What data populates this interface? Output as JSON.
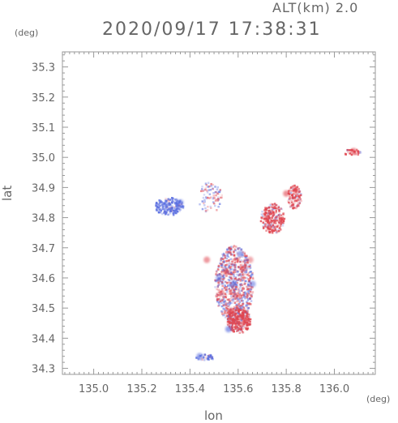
{
  "header": {
    "alt_label": "ALT(km) 2.0",
    "timestamp": "2020/09/17 17:38:31"
  },
  "colors": {
    "axis": "#999999",
    "positive": "#e0454f",
    "negative": "#5a6ee0",
    "background": "#ffffff"
  },
  "chart_data": {
    "type": "heatmap",
    "title": "2020/09/17 17:38:31",
    "subtitle": "ALT(km) 2.0",
    "xlabel": "lon",
    "ylabel": "lat",
    "x_unit": "(deg)",
    "y_unit": "(deg)",
    "xlim": [
      134.87,
      136.17
    ],
    "ylim": [
      34.28,
      35.35
    ],
    "x_ticks": [
      "135.0",
      "135.2",
      "135.4",
      "135.6",
      "135.8",
      "136.0"
    ],
    "y_ticks": [
      "34.3",
      "34.4",
      "34.5",
      "34.6",
      "34.7",
      "34.8",
      "34.9",
      "35.0",
      "35.1",
      "35.2",
      "35.3"
    ],
    "grid": false,
    "cells": [
      {
        "lon": 135.55,
        "lat": 34.62,
        "v": 0.6
      },
      {
        "lon": 135.58,
        "lat": 34.58,
        "v": -0.7
      },
      {
        "lon": 135.62,
        "lat": 34.63,
        "v": 0.5
      },
      {
        "lon": 135.53,
        "lat": 34.55,
        "v": 0.4
      },
      {
        "lon": 135.57,
        "lat": 34.49,
        "v": 0.9
      },
      {
        "lon": 135.63,
        "lat": 34.46,
        "v": 0.8
      },
      {
        "lon": 135.56,
        "lat": 34.43,
        "v": -0.6
      },
      {
        "lon": 135.61,
        "lat": 34.68,
        "v": -0.5
      },
      {
        "lon": 135.47,
        "lat": 34.66,
        "v": 0.4
      },
      {
        "lon": 135.66,
        "lat": 34.58,
        "v": -0.4
      },
      {
        "lon": 135.72,
        "lat": 34.8,
        "v": 0.7
      },
      {
        "lon": 135.8,
        "lat": 34.88,
        "v": 0.5
      },
      {
        "lon": 135.84,
        "lat": 34.89,
        "v": 0.6
      },
      {
        "lon": 135.3,
        "lat": 34.84,
        "v": -0.5
      },
      {
        "lon": 135.36,
        "lat": 34.85,
        "v": -0.4
      },
      {
        "lon": 136.08,
        "lat": 35.02,
        "v": 0.6
      },
      {
        "lon": 135.44,
        "lat": 34.34,
        "v": -0.5
      },
      {
        "lon": 135.52,
        "lat": 34.6,
        "v": -0.3
      },
      {
        "lon": 135.59,
        "lat": 34.54,
        "v": 0.3
      },
      {
        "lon": 135.65,
        "lat": 34.66,
        "v": 0.2
      }
    ]
  }
}
